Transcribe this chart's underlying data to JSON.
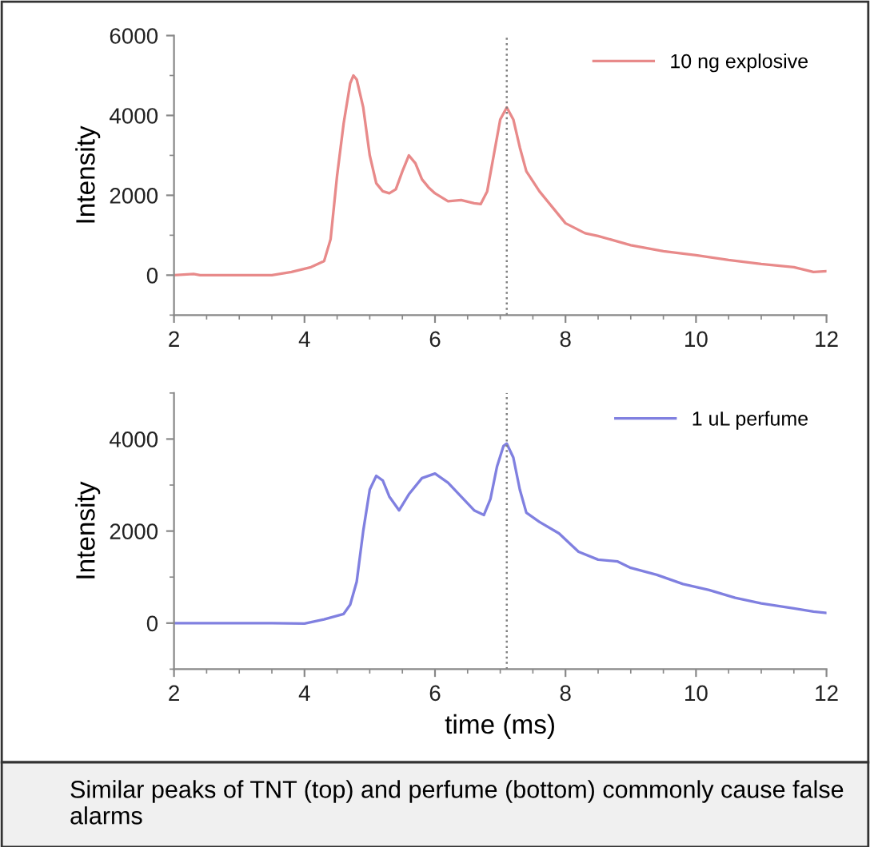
{
  "chart_data": [
    {
      "type": "line",
      "ylabel": "Intensity",
      "xlim": [
        2,
        12
      ],
      "xticks": [
        2,
        4,
        6,
        8,
        10,
        12
      ],
      "ylim": [
        -1000,
        6000
      ],
      "yticks": [
        0,
        2000,
        4000,
        6000
      ],
      "legend": "top right",
      "grid": false,
      "ref_lines": [
        {
          "axis": "x",
          "value": 7.1,
          "line_style": "dotted",
          "color": "#808080"
        }
      ],
      "series": [
        {
          "name": "10 ng explosive",
          "color": "#e88a8a",
          "x": [
            2,
            2.3,
            2.4,
            3.0,
            3.5,
            3.8,
            4.1,
            4.3,
            4.4,
            4.5,
            4.6,
            4.7,
            4.75,
            4.8,
            4.9,
            5.0,
            5.1,
            5.2,
            5.3,
            5.4,
            5.5,
            5.6,
            5.7,
            5.8,
            5.9,
            6.0,
            6.2,
            6.4,
            6.6,
            6.7,
            6.8,
            6.9,
            7.0,
            7.1,
            7.2,
            7.3,
            7.4,
            7.6,
            7.8,
            8.0,
            8.3,
            8.5,
            9.0,
            9.5,
            10.0,
            10.5,
            11.0,
            11.5,
            11.8,
            12
          ],
          "values": [
            0,
            30,
            0,
            0,
            0,
            80,
            200,
            350,
            900,
            2500,
            3800,
            4800,
            5000,
            4900,
            4200,
            3000,
            2300,
            2100,
            2050,
            2150,
            2600,
            3000,
            2800,
            2400,
            2200,
            2050,
            1850,
            1880,
            1800,
            1780,
            2100,
            3000,
            3900,
            4200,
            3900,
            3200,
            2600,
            2100,
            1700,
            1300,
            1050,
            980,
            750,
            600,
            500,
            380,
            280,
            200,
            80,
            100
          ]
        }
      ]
    },
    {
      "type": "line",
      "ylabel": "Intensity",
      "xlabel": "time (ms)",
      "xlim": [
        2,
        12
      ],
      "xticks": [
        2,
        4,
        6,
        8,
        10,
        12
      ],
      "ylim": [
        -1000,
        5000
      ],
      "yticks": [
        0,
        2000,
        4000
      ],
      "legend": "top right",
      "grid": false,
      "ref_lines": [
        {
          "axis": "x",
          "value": 7.1,
          "line_style": "dotted",
          "color": "#808080"
        }
      ],
      "annotations": [
        "Similar peaks of TNT (top) and perfume (bottom) commonly cause false alarms"
      ],
      "series": [
        {
          "name": "1 uL perfume",
          "color": "#8080e0",
          "x": [
            2,
            2.5,
            3,
            3.5,
            4.0,
            4.3,
            4.6,
            4.7,
            4.8,
            4.9,
            5.0,
            5.1,
            5.2,
            5.3,
            5.45,
            5.6,
            5.8,
            6.0,
            6.2,
            6.4,
            6.6,
            6.75,
            6.85,
            6.95,
            7.05,
            7.1,
            7.2,
            7.3,
            7.4,
            7.6,
            7.9,
            8.2,
            8.5,
            8.8,
            9.0,
            9.4,
            9.8,
            10.2,
            10.6,
            11.0,
            11.5,
            11.8,
            12
          ],
          "values": [
            0,
            0,
            0,
            0,
            -10,
            80,
            200,
            400,
            900,
            2000,
            2900,
            3200,
            3100,
            2750,
            2450,
            2800,
            3150,
            3250,
            3050,
            2750,
            2450,
            2350,
            2700,
            3400,
            3850,
            3900,
            3600,
            2900,
            2400,
            2200,
            1950,
            1550,
            1380,
            1340,
            1200,
            1050,
            850,
            720,
            550,
            430,
            320,
            250,
            220
          ]
        }
      ]
    }
  ]
}
